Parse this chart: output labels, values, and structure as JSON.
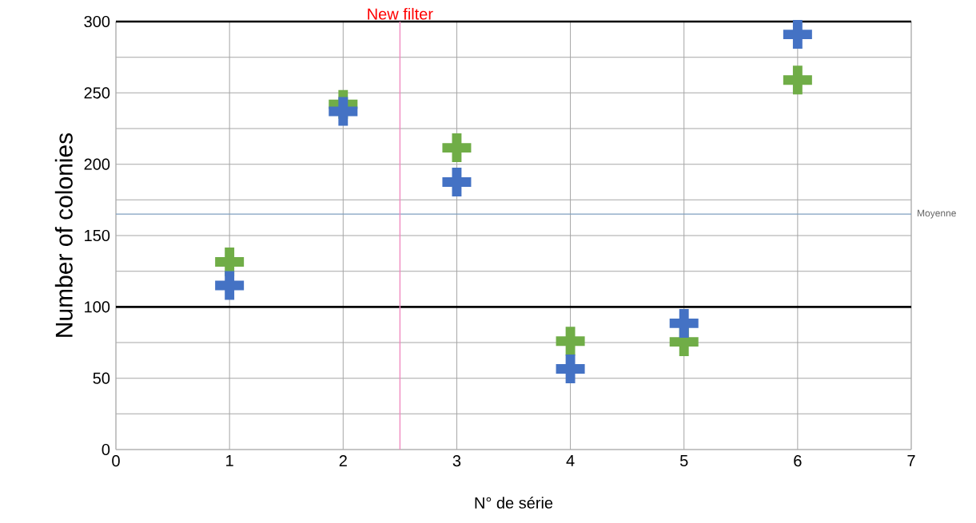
{
  "chart_data": {
    "type": "scatter",
    "xlabel": "N° de série",
    "ylabel": "Number of colonies",
    "x": [
      1,
      2,
      3,
      4,
      5,
      6
    ],
    "series": [
      {
        "color": "#70ad47",
        "values": [
          131.5,
          242,
          211.5,
          76,
          75.5,
          259
        ]
      },
      {
        "color": "#4472c4",
        "values": [
          115,
          237,
          187.5,
          56.5,
          88.5,
          291
        ]
      }
    ],
    "marker": "cross",
    "grid": true,
    "xlim": [
      0,
      7
    ],
    "xticks": [
      0,
      1,
      2,
      3,
      4,
      5,
      6,
      7
    ],
    "ylim": [
      0,
      300
    ],
    "yticks": [
      0,
      {
        "value": 25,
        "label": null
      },
      50,
      {
        "value": 75,
        "label": null
      },
      100,
      {
        "value": 125,
        "label": null
      },
      150,
      {
        "value": 175,
        "label": null
      },
      200,
      {
        "value": 225,
        "label": null
      },
      250,
      {
        "value": 275,
        "label": null
      },
      300
    ],
    "ref_lines": [
      {
        "axis": "y",
        "value": 100,
        "color": "#000000"
      },
      {
        "axis": "y",
        "value": 300,
        "color": "#000000"
      },
      {
        "axis": "y",
        "value": 165,
        "label": "Moyenne",
        "color": "#7f9fbf"
      },
      {
        "axis": "x",
        "value": 2.5,
        "label": "New filter",
        "color": "#f08cc0"
      }
    ]
  }
}
